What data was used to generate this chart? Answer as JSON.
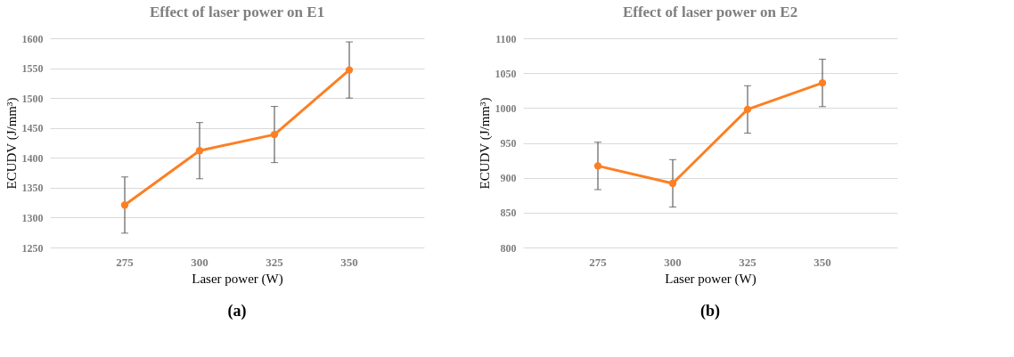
{
  "chart_data": [
    {
      "type": "line",
      "title": "Effect of laser power on E1",
      "xlabel": "Laser power (W)",
      "ylabel": "ECUDV (J/mm³)",
      "categories": [
        "275",
        "300",
        "325",
        "350"
      ],
      "series": [
        {
          "color": "#fd7f23",
          "values": [
            1321,
            1412,
            1439,
            1547
          ],
          "errors": [
            47,
            47,
            47,
            47
          ]
        }
      ],
      "ylim": [
        1250,
        1600
      ],
      "yticks": [
        1250,
        1300,
        1350,
        1400,
        1450,
        1500,
        1550,
        1600
      ],
      "grid": "y",
      "marker": "circle",
      "line_style": "solid",
      "annotations": [
        "(a)"
      ]
    },
    {
      "type": "line",
      "title": "Effect of laser power on E2",
      "xlabel": "Laser power (W)",
      "ylabel": "ECUDV (J/mm³)",
      "categories": [
        "275",
        "300",
        "325",
        "350"
      ],
      "series": [
        {
          "color": "#fd7f23",
          "values": [
            917,
            892,
            998,
            1036
          ],
          "errors": [
            34,
            34,
            34,
            34
          ]
        }
      ],
      "ylim": [
        800,
        1100
      ],
      "yticks": [
        800,
        850,
        900,
        950,
        1000,
        1050,
        1100
      ],
      "grid": "y",
      "marker": "circle",
      "line_style": "solid",
      "annotations": [
        "(b)"
      ]
    }
  ]
}
